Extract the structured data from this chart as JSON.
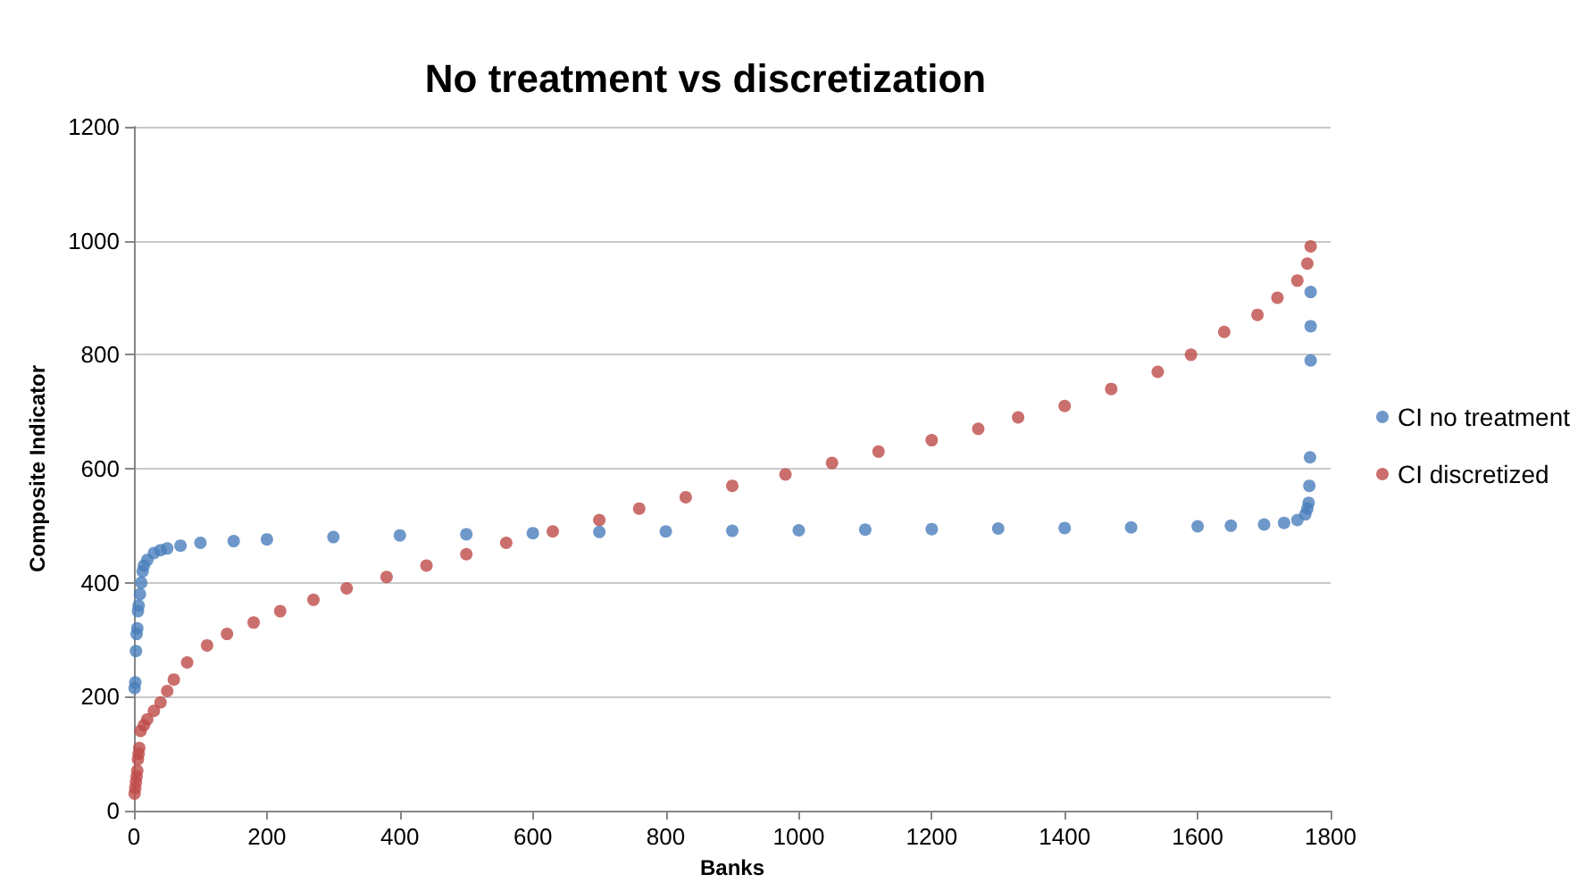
{
  "chart_data": {
    "type": "scatter",
    "title": "No treatment vs discretization",
    "xlabel": "Banks",
    "ylabel": "Composite Indicator",
    "xlim": [
      0,
      1800
    ],
    "xticks": [
      0,
      200,
      400,
      600,
      800,
      1000,
      1200,
      1400,
      1600,
      1800
    ],
    "ylim": [
      0,
      1200
    ],
    "yticks": [
      0,
      200,
      400,
      600,
      800,
      1000,
      1200
    ],
    "grid": "y",
    "legend": "right",
    "marker": "circle",
    "series": [
      {
        "name": "CI no treatment",
        "color": "#4a7ebb",
        "x": [
          1,
          2,
          3,
          4,
          5,
          6,
          7,
          9,
          11,
          13,
          15,
          20,
          30,
          40,
          50,
          70,
          100,
          150,
          200,
          300,
          400,
          500,
          600,
          700,
          800,
          900,
          1000,
          1100,
          1200,
          1300,
          1400,
          1500,
          1600,
          1650,
          1700,
          1730,
          1750,
          1762,
          1765,
          1767,
          1768,
          1769,
          1770,
          1770,
          1770
        ],
        "values": [
          215,
          225,
          280,
          310,
          320,
          350,
          360,
          380,
          400,
          420,
          430,
          440,
          452,
          457,
          460,
          465,
          470,
          473,
          476,
          480,
          483,
          485,
          487,
          489,
          490,
          491,
          492,
          493,
          494,
          495,
          496,
          497,
          499,
          500,
          502,
          505,
          510,
          520,
          530,
          540,
          570,
          620,
          790,
          850,
          910
        ]
      },
      {
        "name": "CI discretized",
        "color": "#be4b48",
        "x": [
          1,
          2,
          3,
          4,
          5,
          6,
          7,
          8,
          10,
          15,
          20,
          30,
          40,
          50,
          60,
          80,
          110,
          140,
          180,
          220,
          270,
          320,
          380,
          440,
          500,
          560,
          630,
          700,
          760,
          830,
          900,
          980,
          1050,
          1120,
          1200,
          1270,
          1330,
          1400,
          1470,
          1540,
          1590,
          1640,
          1690,
          1720,
          1750,
          1765,
          1770
        ],
        "values": [
          30,
          40,
          50,
          60,
          70,
          90,
          100,
          110,
          140,
          150,
          160,
          175,
          190,
          210,
          230,
          260,
          290,
          310,
          330,
          350,
          370,
          390,
          410,
          430,
          450,
          470,
          490,
          510,
          530,
          550,
          570,
          590,
          610,
          630,
          650,
          670,
          690,
          710,
          740,
          770,
          800,
          840,
          870,
          900,
          930,
          960,
          990
        ]
      }
    ]
  }
}
